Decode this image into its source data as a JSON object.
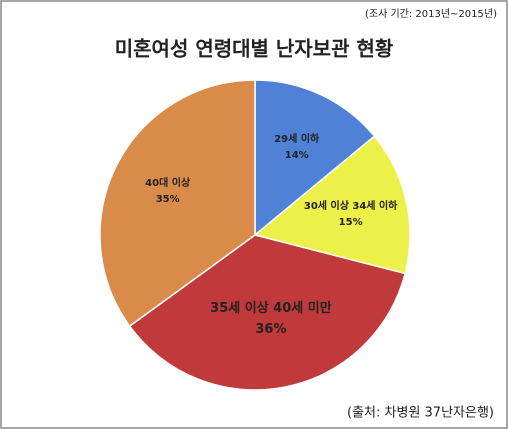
{
  "chart_data": {
    "type": "pie",
    "title": "미혼여성 연령대별 난자보관 현황",
    "subtitle": "(조사 기간: 2013년~2015년)",
    "source": "(출처: 차병원 37난자은행)",
    "categories": [
      "29세 이하",
      "30세 이상 34세 이하",
      "35세 이상 40세 미만",
      "40대 이상"
    ],
    "values": [
      14,
      15,
      36,
      35
    ],
    "value_labels": [
      "14%",
      "15%",
      "36%",
      "35%"
    ],
    "colors": [
      "#4f81d6",
      "#eef04a",
      "#c0393b",
      "#d98b4a"
    ]
  }
}
